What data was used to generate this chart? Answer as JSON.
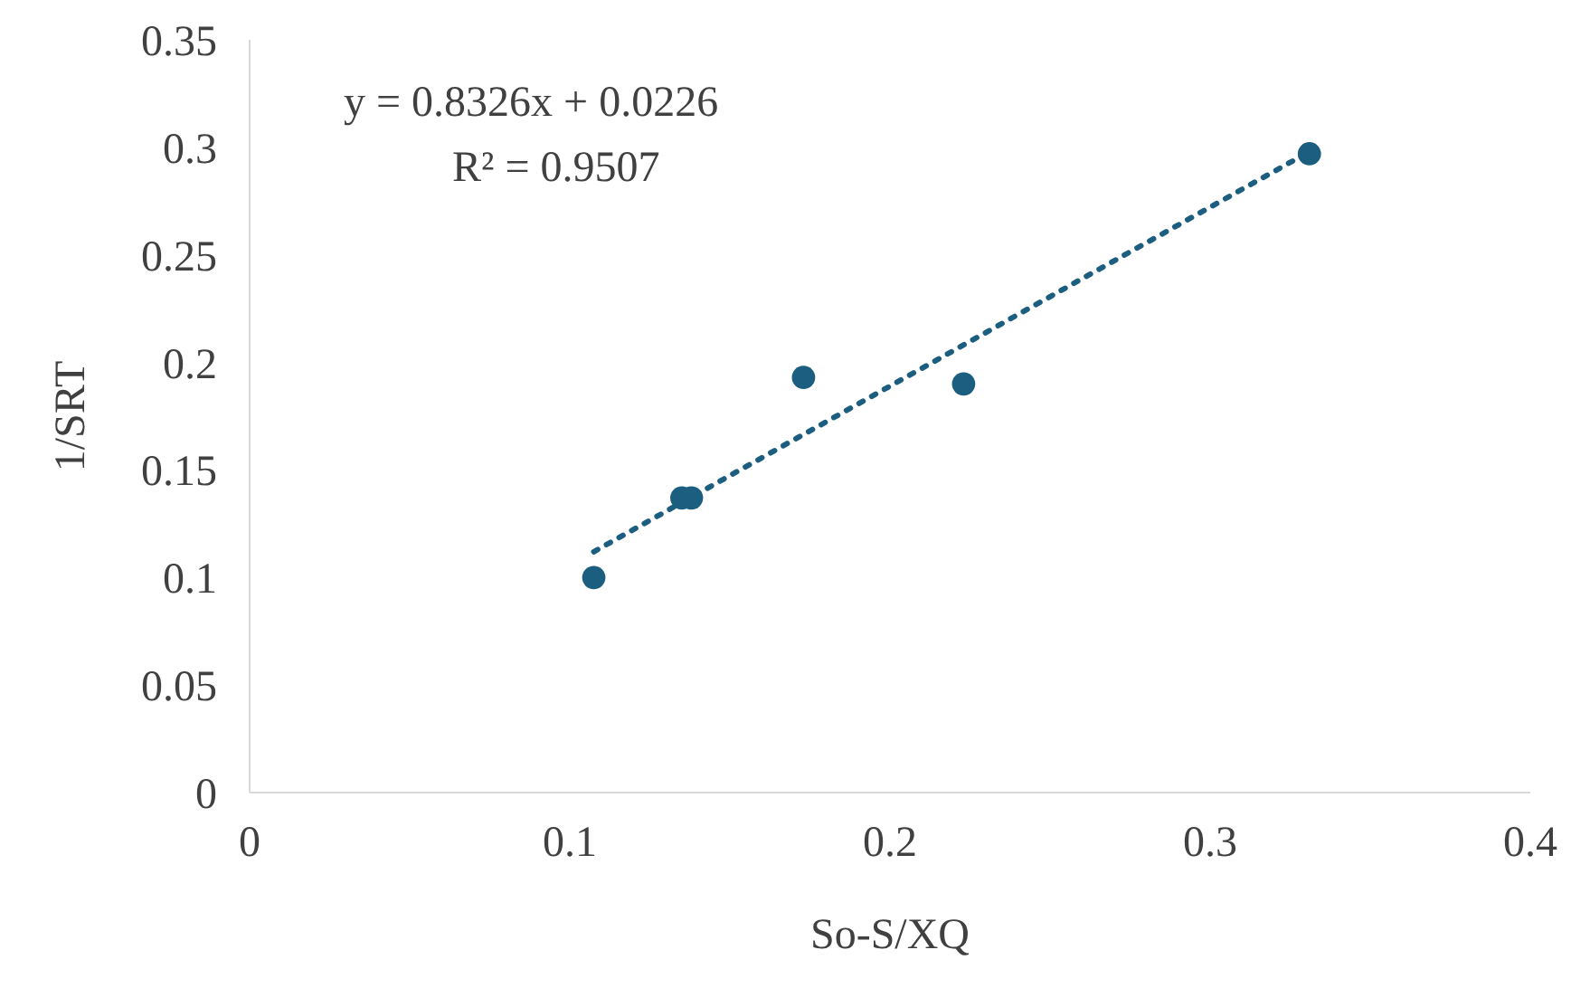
{
  "chart_data": {
    "type": "scatter",
    "xlabel": "So-S/XQ",
    "ylabel": "1/SRT",
    "xlim": [
      0,
      0.4
    ],
    "xticks": [
      0,
      0.1,
      0.2,
      0.3,
      0.4
    ],
    "ylim": [
      0,
      0.35
    ],
    "yticks": [
      0,
      0.05,
      0.1,
      0.15,
      0.2,
      0.25,
      0.3,
      0.35
    ],
    "marker": "circle",
    "series": [
      {
        "color": "#1b5e80",
        "x": [
          0.1075,
          0.135,
          0.138,
          0.173,
          0.223,
          0.331
        ],
        "values": [
          0.1,
          0.137,
          0.137,
          0.193,
          0.19,
          0.297
        ]
      },
      {
        "type": "line",
        "color": "#1b5e80",
        "line_style": "dotted",
        "marker": "none",
        "x": [
          0.1075,
          0.331
        ],
        "values": [
          0.112,
          0.298
        ]
      }
    ],
    "annotations": [
      "y = 0.8326x + 0.0226",
      "R² = 0.9507"
    ]
  }
}
